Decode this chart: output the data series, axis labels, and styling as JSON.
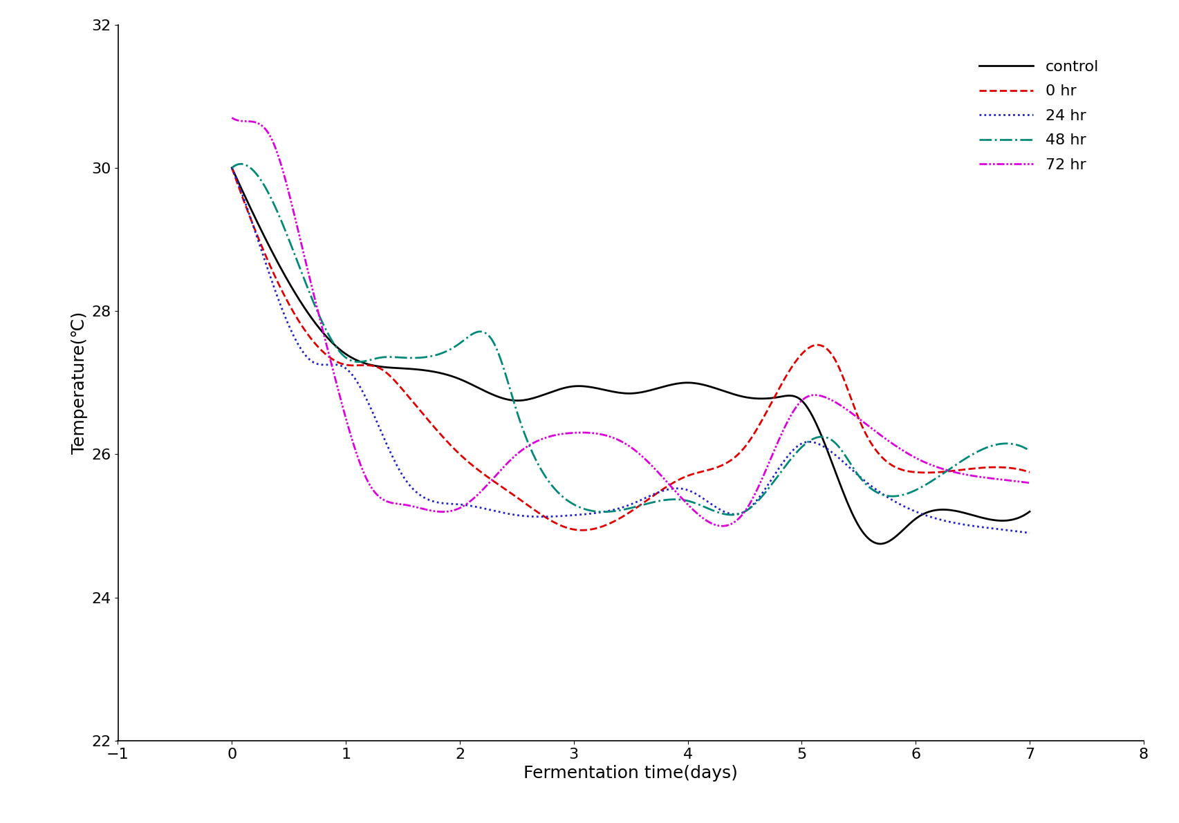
{
  "xlabel": "Fermentation time(days)",
  "ylabel": "Temperature(℃)",
  "xlim": [
    -1,
    8
  ],
  "ylim": [
    22,
    32
  ],
  "xticks": [
    -1,
    0,
    1,
    2,
    3,
    4,
    5,
    6,
    7,
    8
  ],
  "yticks": [
    22,
    24,
    26,
    28,
    30,
    32
  ],
  "background_color": "#ffffff",
  "control_x": [
    0,
    0.5,
    1.0,
    1.5,
    2.0,
    2.5,
    3.0,
    3.5,
    4.0,
    4.5,
    4.8,
    5.0,
    5.5,
    5.7,
    6.0,
    6.5,
    7.0
  ],
  "control_y": [
    30.0,
    28.4,
    27.4,
    27.2,
    27.05,
    26.75,
    26.95,
    26.85,
    27.0,
    26.8,
    26.8,
    26.75,
    25.0,
    24.75,
    25.1,
    25.15,
    25.2
  ],
  "hr0_x": [
    0,
    0.5,
    1.0,
    1.3,
    1.5,
    2.0,
    2.5,
    3.0,
    3.5,
    4.0,
    4.5,
    5.0,
    5.3,
    5.5,
    6.0,
    6.5,
    7.0
  ],
  "hr0_y": [
    30.0,
    28.1,
    27.25,
    27.2,
    26.9,
    26.0,
    25.4,
    24.95,
    25.2,
    25.7,
    26.1,
    27.4,
    27.3,
    26.5,
    25.75,
    25.8,
    25.75
  ],
  "hr24_x": [
    0,
    0.4,
    0.7,
    1.0,
    1.5,
    2.0,
    2.5,
    3.0,
    3.5,
    4.0,
    4.5,
    5.0,
    5.2,
    5.5,
    6.0,
    6.5,
    7.0
  ],
  "hr24_y": [
    30.0,
    28.2,
    27.3,
    27.2,
    25.7,
    25.3,
    25.15,
    25.15,
    25.3,
    25.5,
    25.2,
    26.15,
    26.1,
    25.7,
    25.2,
    25.0,
    24.9
  ],
  "hr48_x": [
    0,
    0.5,
    1.0,
    1.3,
    1.5,
    2.0,
    2.3,
    2.5,
    3.0,
    3.5,
    4.0,
    4.5,
    5.0,
    5.3,
    5.5,
    6.0,
    6.5,
    7.0
  ],
  "hr48_y": [
    30.0,
    29.0,
    27.35,
    27.35,
    27.35,
    27.55,
    27.55,
    26.6,
    25.3,
    25.25,
    25.35,
    25.2,
    26.1,
    26.15,
    25.7,
    25.5,
    26.0,
    26.05
  ],
  "hr72_x": [
    0,
    0.15,
    0.35,
    0.6,
    0.9,
    1.2,
    1.5,
    2.0,
    2.5,
    3.0,
    3.5,
    4.0,
    4.5,
    5.0,
    5.2,
    5.5,
    6.0,
    6.5,
    7.0
  ],
  "hr72_y": [
    30.7,
    30.65,
    30.4,
    29.0,
    27.1,
    25.6,
    25.3,
    25.25,
    26.0,
    26.3,
    26.1,
    25.3,
    25.2,
    26.75,
    26.8,
    26.5,
    25.95,
    25.7,
    25.6
  ],
  "control_color": "#000000",
  "hr0_color": "#e00000",
  "hr24_color": "#2222cc",
  "hr48_color": "#008878",
  "hr72_color": "#dd00dd",
  "line_width": 2.0,
  "fontsize_label": 18,
  "fontsize_tick": 16,
  "fontsize_legend": 16
}
